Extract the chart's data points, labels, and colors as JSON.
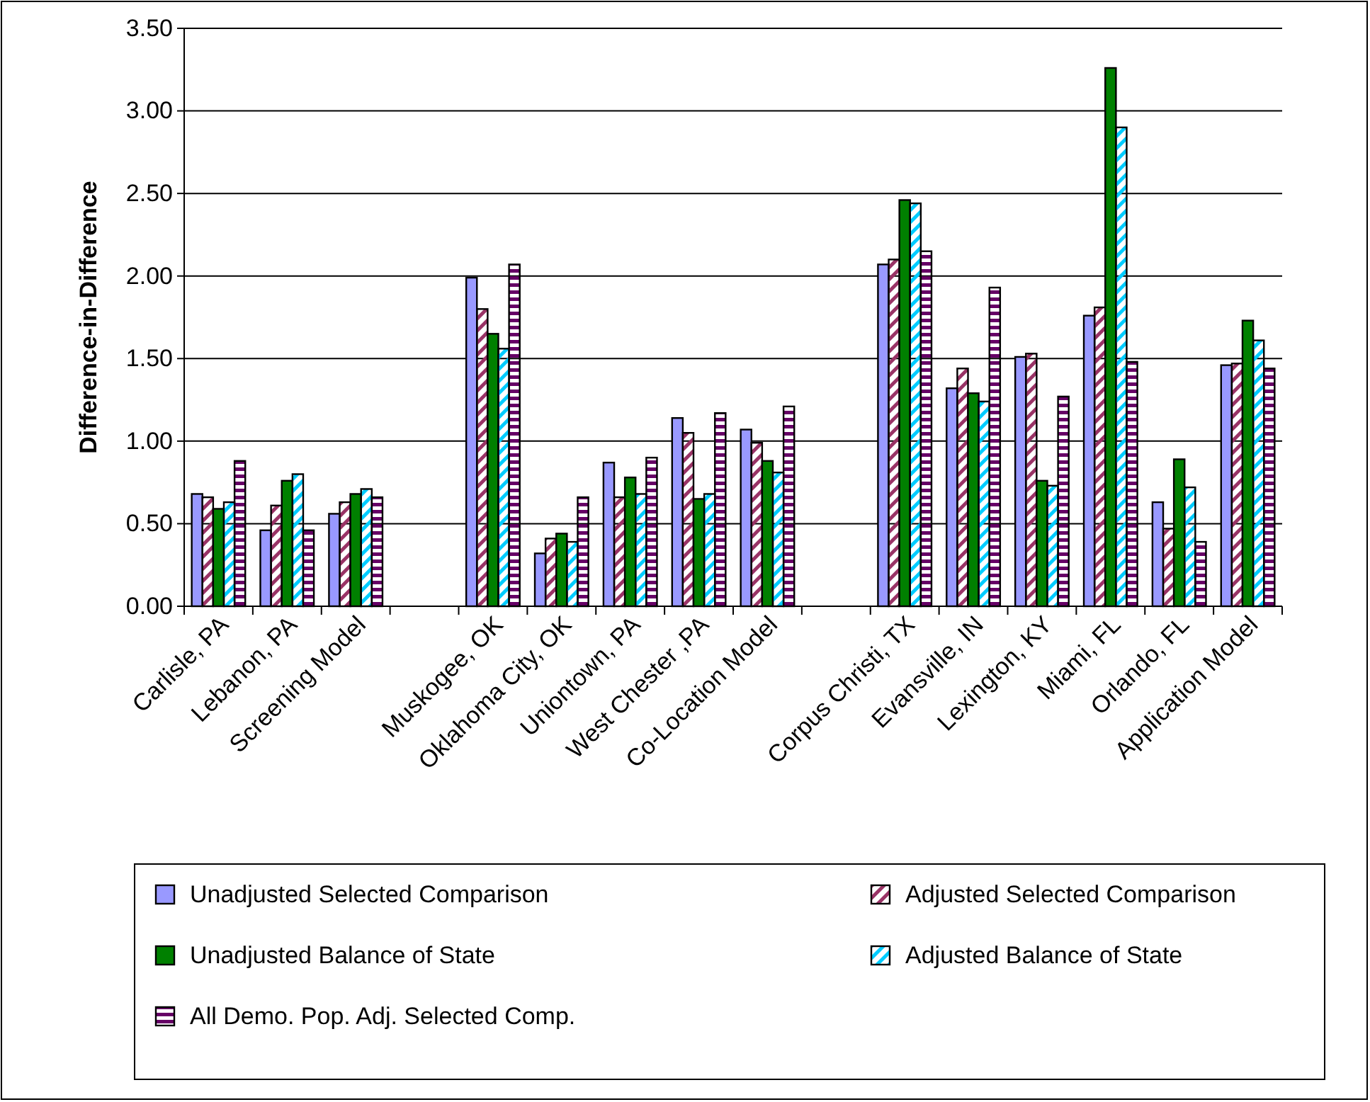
{
  "chart_data": {
    "type": "bar",
    "ylabel": "Difference-in-Difference",
    "categories": [
      "Carlisle, PA",
      "Lebanon, PA",
      "Screening Model",
      null,
      "Muskogee, OK",
      "Oklahoma City, OK",
      "Uniontown, PA",
      "West Chester ,PA",
      "Co-Location Model",
      null,
      "Corpus Christi, TX",
      "Evansville, IN",
      "Lexington, KY",
      "Miami, FL",
      "Orlando, FL",
      "Application Model"
    ],
    "series": [
      {
        "name": "Unadjusted Selected Comparison",
        "color": "#9999ff",
        "values": [
          0.68,
          0.46,
          0.56,
          null,
          1.99,
          0.32,
          0.87,
          1.14,
          1.07,
          null,
          2.07,
          1.32,
          1.51,
          1.76,
          0.63,
          1.46
        ]
      },
      {
        "name": "Adjusted Selected Comparison",
        "color": "#993366",
        "values": [
          0.66,
          0.61,
          0.63,
          null,
          1.8,
          0.41,
          0.66,
          1.05,
          0.99,
          null,
          2.1,
          1.44,
          1.53,
          1.81,
          0.47,
          1.47
        ]
      },
      {
        "name": "Unadjusted Balance of State",
        "color": "#008000",
        "values": [
          0.59,
          0.76,
          0.68,
          null,
          1.65,
          0.44,
          0.78,
          0.65,
          0.88,
          null,
          2.46,
          1.29,
          0.76,
          3.26,
          0.89,
          1.73
        ]
      },
      {
        "name": "Adjusted Balance of State",
        "color": "#00ccff",
        "values": [
          0.63,
          0.8,
          0.71,
          null,
          1.56,
          0.39,
          0.68,
          0.68,
          0.81,
          null,
          2.44,
          1.24,
          0.73,
          2.9,
          0.72,
          1.61
        ]
      },
      {
        "name": "All Demo. Pop. Adj. Selected Comp.",
        "color": "#660066",
        "values": [
          0.88,
          0.46,
          0.66,
          null,
          2.07,
          0.66,
          0.9,
          1.17,
          1.21,
          null,
          2.15,
          1.93,
          1.27,
          1.48,
          0.39,
          1.44
        ]
      }
    ],
    "ylim": [
      0,
      3.5
    ],
    "yticks": [
      {
        "value": 0,
        "label": "0.00"
      },
      {
        "value": 0.5,
        "label": "0.50"
      },
      {
        "value": 1,
        "label": "1.00"
      },
      {
        "value": 1.5,
        "label": "1.50"
      },
      {
        "value": 2,
        "label": "2.00"
      },
      {
        "value": 2.5,
        "label": "2.50"
      },
      {
        "value": 3,
        "label": "3.00"
      },
      {
        "value": 3.5,
        "label": "3.50"
      }
    ],
    "grid": "y",
    "legend": "bottom"
  }
}
